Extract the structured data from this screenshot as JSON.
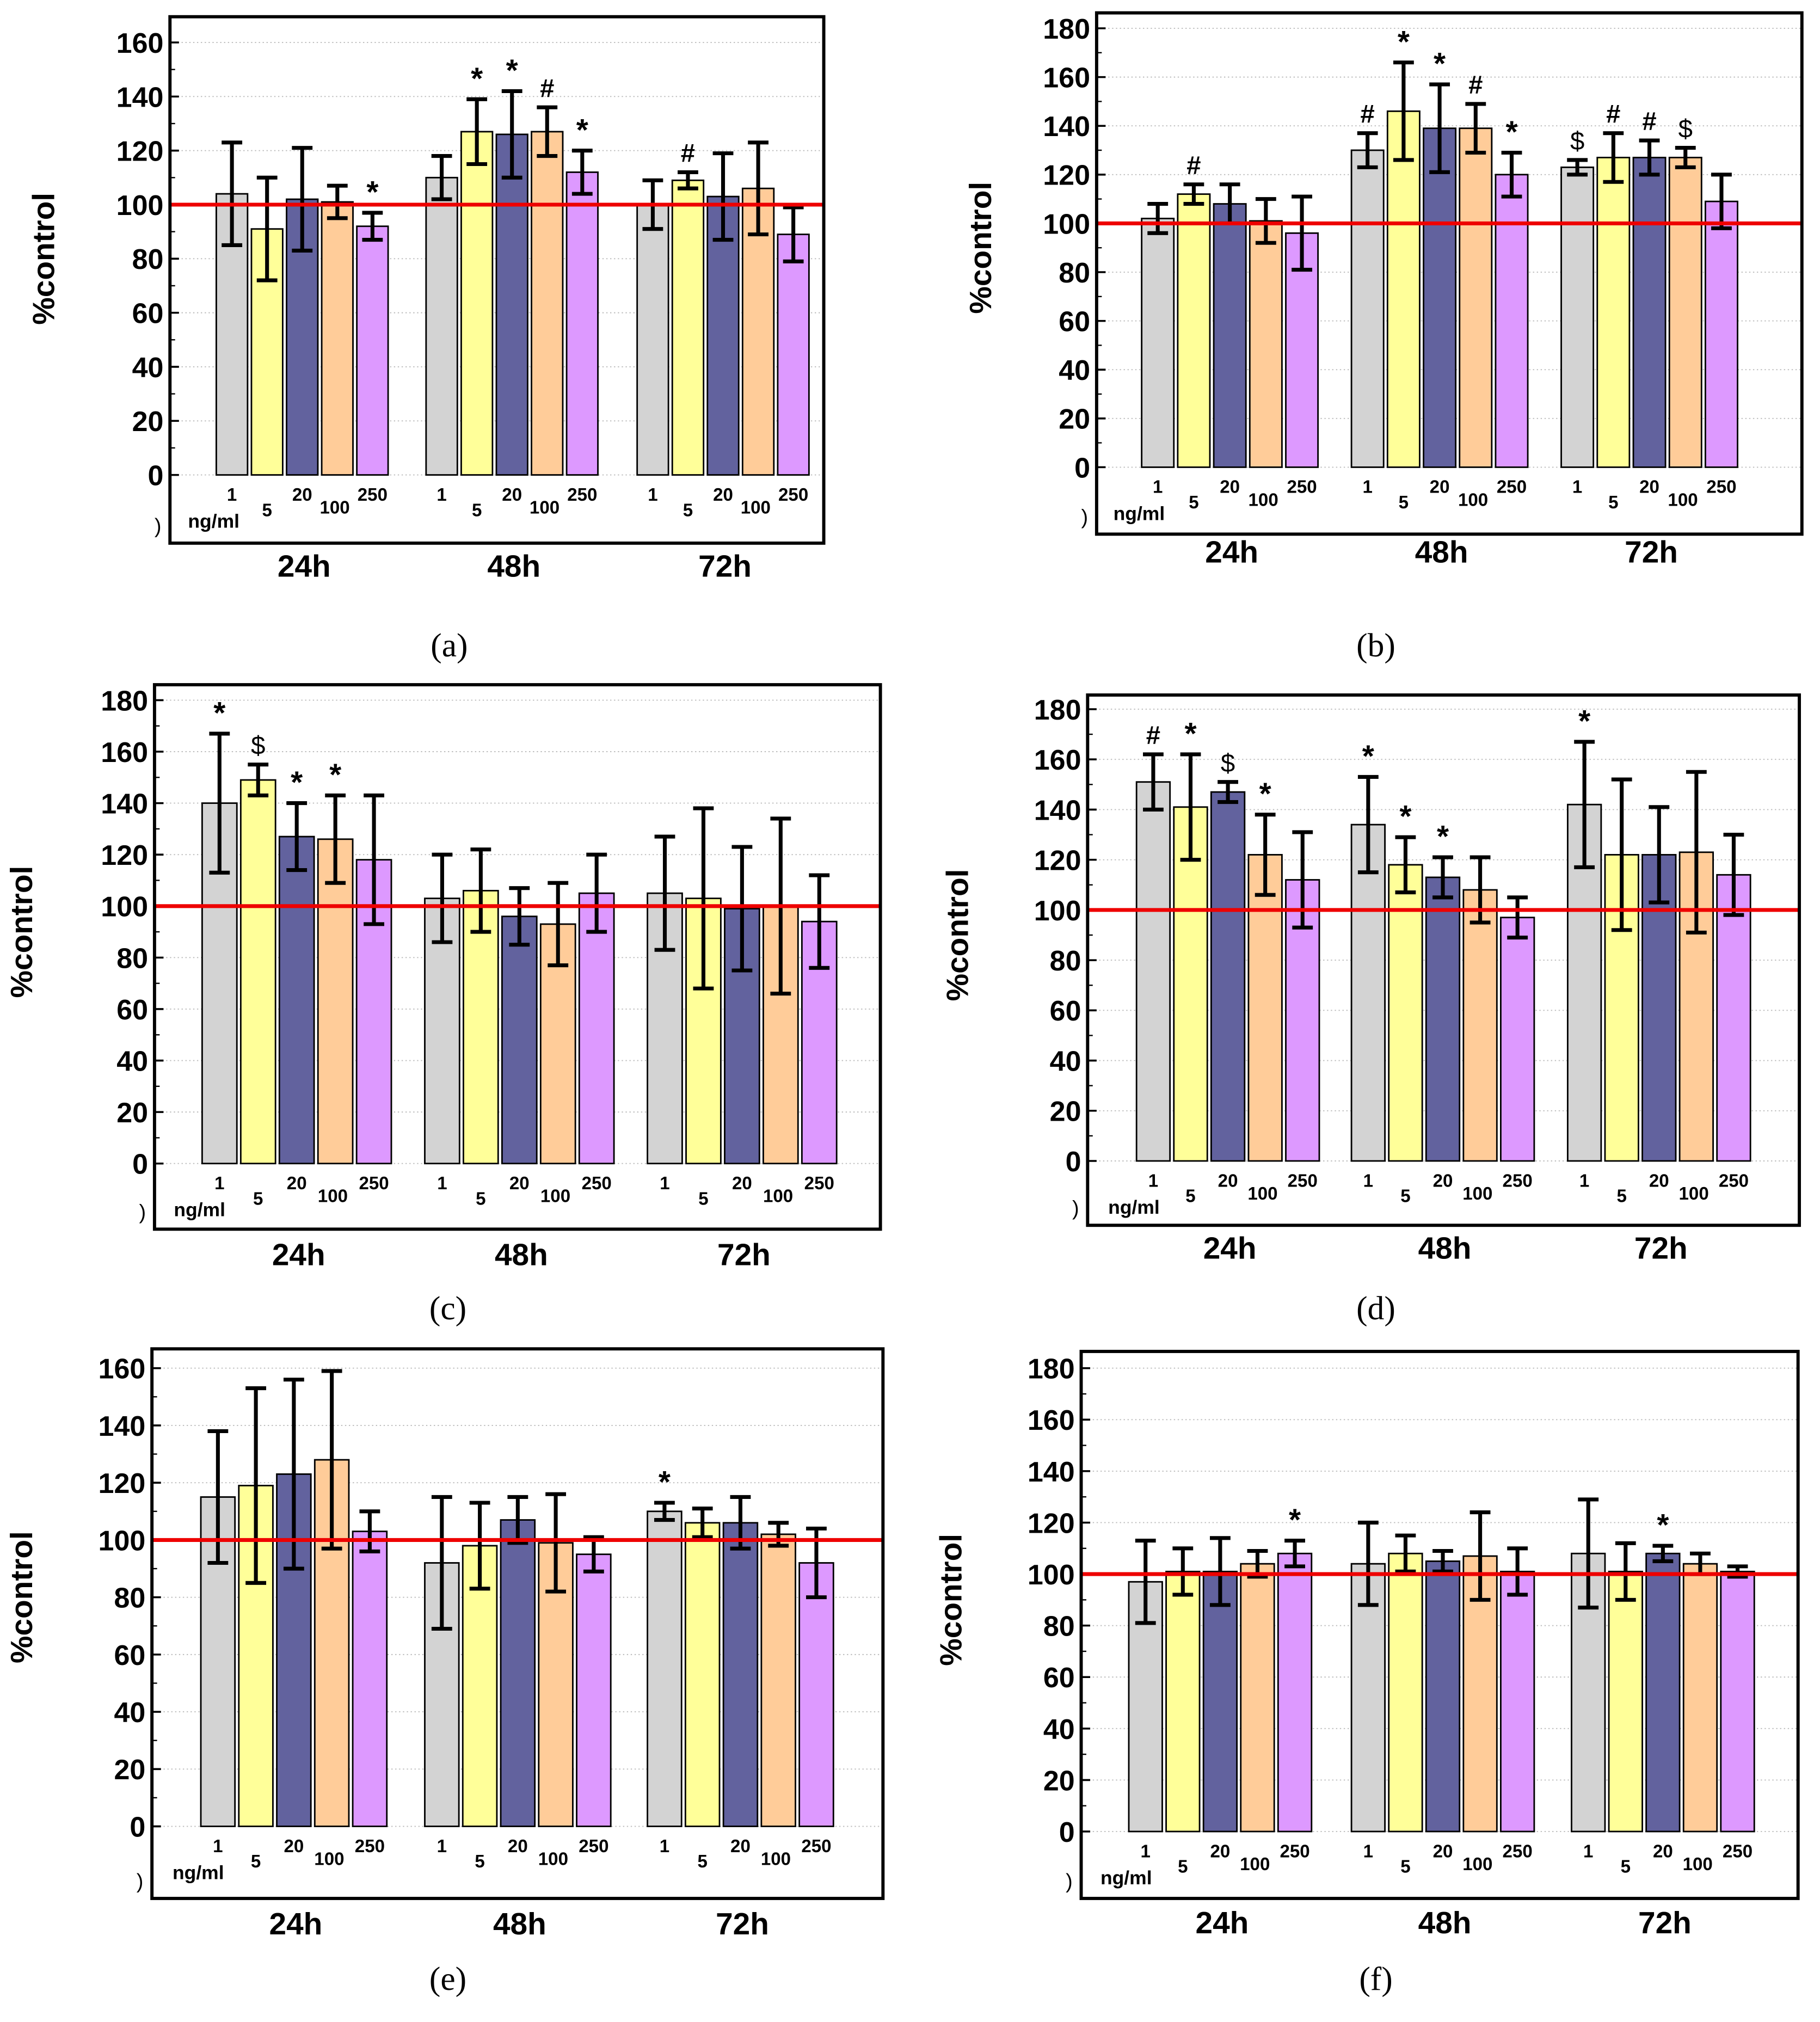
{
  "colors": {
    "series": [
      "#d3d3d3",
      "#ffff99",
      "#62629e",
      "#ffcc99",
      "#dd99ff"
    ],
    "reference_line": "#ee0000"
  },
  "chart_data": [
    {
      "type": "bar",
      "caption": "(a)",
      "ylabel": "%control",
      "ylim": [
        0,
        160
      ],
      "yticks": [
        0,
        20,
        40,
        60,
        80,
        100,
        120,
        140,
        160
      ],
      "categories": [
        "24h",
        "48h",
        "72h"
      ],
      "dose_labels": [
        "1",
        "5",
        "20",
        "100",
        "250"
      ],
      "dose_unit": "ng/ml",
      "reference": 100,
      "series": [
        {
          "name": "1 ng/ml",
          "values": [
            104,
            110,
            100
          ],
          "errors": [
            19,
            8,
            9
          ],
          "marks": [
            "",
            "",
            ""
          ]
        },
        {
          "name": "5 ng/ml",
          "values": [
            91,
            127,
            109
          ],
          "errors": [
            19,
            12,
            3
          ],
          "marks": [
            "",
            "*",
            "#"
          ]
        },
        {
          "name": "20 ng/ml",
          "values": [
            102,
            126,
            103
          ],
          "errors": [
            19,
            16,
            16
          ],
          "marks": [
            "",
            "*",
            ""
          ]
        },
        {
          "name": "100 ng/ml",
          "values": [
            101,
            127,
            106
          ],
          "errors": [
            6,
            9,
            17
          ],
          "marks": [
            "",
            "#",
            ""
          ]
        },
        {
          "name": "250 ng/ml",
          "values": [
            92,
            112,
            89
          ],
          "errors": [
            5,
            8,
            10
          ],
          "marks": [
            "*",
            "*",
            ""
          ]
        }
      ]
    },
    {
      "type": "bar",
      "caption": "(b)",
      "ylabel": "%control",
      "ylim": [
        0,
        180
      ],
      "yticks": [
        0,
        20,
        40,
        60,
        80,
        100,
        120,
        140,
        160,
        180
      ],
      "categories": [
        "24h",
        "48h",
        "72h"
      ],
      "dose_labels": [
        "1",
        "5",
        "20",
        "100",
        "250"
      ],
      "dose_unit": "ng/ml",
      "reference": 100,
      "series": [
        {
          "name": "1 ng/ml",
          "values": [
            102,
            130,
            123
          ],
          "errors": [
            6,
            7,
            3
          ],
          "marks": [
            "",
            "#",
            "$"
          ]
        },
        {
          "name": "5 ng/ml",
          "values": [
            112,
            146,
            127
          ],
          "errors": [
            4,
            20,
            10
          ],
          "marks": [
            "#",
            "*",
            "#"
          ]
        },
        {
          "name": "20 ng/ml",
          "values": [
            108,
            139,
            127
          ],
          "errors": [
            8,
            18,
            7
          ],
          "marks": [
            "",
            "*",
            "#"
          ]
        },
        {
          "name": "100 ng/ml",
          "values": [
            101,
            139,
            127
          ],
          "errors": [
            9,
            10,
            4
          ],
          "marks": [
            "",
            "#",
            "$"
          ]
        },
        {
          "name": "250 ng/ml",
          "values": [
            96,
            120,
            109
          ],
          "errors": [
            15,
            9,
            11
          ],
          "marks": [
            "",
            "*",
            ""
          ]
        }
      ]
    },
    {
      "type": "bar",
      "caption": "(c)",
      "ylabel": "%control",
      "ylim": [
        0,
        180
      ],
      "yticks": [
        0,
        20,
        40,
        60,
        80,
        100,
        120,
        140,
        160,
        180
      ],
      "categories": [
        "24h",
        "48h",
        "72h"
      ],
      "dose_labels": [
        "1",
        "5",
        "20",
        "100",
        "250"
      ],
      "dose_unit": "ng/ml",
      "reference": 100,
      "series": [
        {
          "name": "1 ng/ml",
          "values": [
            140,
            103,
            105
          ],
          "errors": [
            27,
            17,
            22
          ],
          "marks": [
            "*",
            "",
            ""
          ]
        },
        {
          "name": "5 ng/ml",
          "values": [
            149,
            106,
            103
          ],
          "errors": [
            6,
            16,
            35
          ],
          "marks": [
            "$",
            "",
            ""
          ]
        },
        {
          "name": "20 ng/ml",
          "values": [
            127,
            96,
            99
          ],
          "errors": [
            13,
            11,
            24
          ],
          "marks": [
            "*",
            "",
            ""
          ]
        },
        {
          "name": "100 ng/ml",
          "values": [
            126,
            93,
            100
          ],
          "errors": [
            17,
            16,
            34
          ],
          "marks": [
            "*",
            "",
            ""
          ]
        },
        {
          "name": "250 ng/ml",
          "values": [
            118,
            105,
            94
          ],
          "errors": [
            25,
            15,
            18
          ],
          "marks": [
            "",
            "",
            ""
          ]
        }
      ]
    },
    {
      "type": "bar",
      "caption": "(d)",
      "ylabel": "%control",
      "ylim": [
        0,
        180
      ],
      "yticks": [
        0,
        20,
        40,
        60,
        80,
        100,
        120,
        140,
        160,
        180
      ],
      "categories": [
        "24h",
        "48h",
        "72h"
      ],
      "dose_labels": [
        "1",
        "5",
        "20",
        "100",
        "250"
      ],
      "dose_unit": "ng/ml",
      "reference": 100,
      "series": [
        {
          "name": "1 ng/ml",
          "values": [
            151,
            134,
            142
          ],
          "errors": [
            11,
            19,
            25
          ],
          "marks": [
            "#",
            "*",
            "*"
          ]
        },
        {
          "name": "5 ng/ml",
          "values": [
            141,
            118,
            122
          ],
          "errors": [
            21,
            11,
            30
          ],
          "marks": [
            "*",
            "*",
            ""
          ]
        },
        {
          "name": "20 ng/ml",
          "values": [
            147,
            113,
            122
          ],
          "errors": [
            4,
            8,
            19
          ],
          "marks": [
            "$",
            "*",
            ""
          ]
        },
        {
          "name": "100 ng/ml",
          "values": [
            122,
            108,
            123
          ],
          "errors": [
            16,
            13,
            32
          ],
          "marks": [
            "*",
            "",
            ""
          ]
        },
        {
          "name": "250 ng/ml",
          "values": [
            112,
            97,
            114
          ],
          "errors": [
            19,
            8,
            16
          ],
          "marks": [
            "",
            "",
            ""
          ]
        }
      ]
    },
    {
      "type": "bar",
      "caption": "(e)",
      "ylabel": "%control",
      "ylim": [
        0,
        160
      ],
      "yticks": [
        0,
        20,
        40,
        60,
        80,
        100,
        120,
        140,
        160
      ],
      "categories": [
        "24h",
        "48h",
        "72h"
      ],
      "dose_labels": [
        "1",
        "5",
        "20",
        "100",
        "250"
      ],
      "dose_unit": "ng/ml",
      "reference": 100,
      "series": [
        {
          "name": "1 ng/ml",
          "values": [
            115,
            92,
            110
          ],
          "errors": [
            23,
            23,
            3
          ],
          "marks": [
            "",
            "",
            "*"
          ]
        },
        {
          "name": "5 ng/ml",
          "values": [
            119,
            98,
            106
          ],
          "errors": [
            34,
            15,
            5
          ],
          "marks": [
            "",
            "",
            ""
          ]
        },
        {
          "name": "20 ng/ml",
          "values": [
            123,
            107,
            106
          ],
          "errors": [
            33,
            8,
            9
          ],
          "marks": [
            "",
            "",
            ""
          ]
        },
        {
          "name": "100 ng/ml",
          "values": [
            128,
            99,
            102
          ],
          "errors": [
            31,
            17,
            4
          ],
          "marks": [
            "",
            "",
            ""
          ]
        },
        {
          "name": "250 ng/ml",
          "values": [
            103,
            95,
            92
          ],
          "errors": [
            7,
            6,
            12
          ],
          "marks": [
            "",
            "",
            ""
          ]
        }
      ]
    },
    {
      "type": "bar",
      "caption": "(f)",
      "ylabel": "%control",
      "ylim": [
        0,
        180
      ],
      "yticks": [
        0,
        20,
        40,
        60,
        80,
        100,
        120,
        140,
        160,
        180
      ],
      "categories": [
        "24h",
        "48h",
        "72h"
      ],
      "dose_labels": [
        "1",
        "5",
        "20",
        "100",
        "250"
      ],
      "dose_unit": "ng/ml",
      "reference": 100,
      "series": [
        {
          "name": "1 ng/ml",
          "values": [
            97,
            104,
            108
          ],
          "errors": [
            16,
            16,
            21
          ],
          "marks": [
            "",
            "",
            ""
          ]
        },
        {
          "name": "5 ng/ml",
          "values": [
            101,
            108,
            101
          ],
          "errors": [
            9,
            7,
            11
          ],
          "marks": [
            "",
            "",
            ""
          ]
        },
        {
          "name": "20 ng/ml",
          "values": [
            101,
            105,
            108
          ],
          "errors": [
            13,
            4,
            3
          ],
          "marks": [
            "",
            "",
            "*"
          ]
        },
        {
          "name": "100 ng/ml",
          "values": [
            104,
            107,
            104
          ],
          "errors": [
            5,
            17,
            4
          ],
          "marks": [
            "",
            "",
            ""
          ]
        },
        {
          "name": "250 ng/ml",
          "values": [
            108,
            101,
            101
          ],
          "errors": [
            5,
            9,
            2
          ],
          "marks": [
            "*",
            "",
            ""
          ]
        }
      ]
    }
  ]
}
